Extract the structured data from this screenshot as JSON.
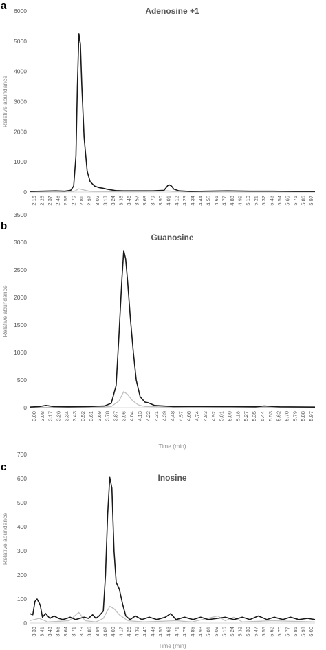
{
  "chart_data": [
    {
      "panel": "a",
      "type": "line",
      "title": "Adenosine +1",
      "ylabel": "Relative abundance",
      "xlabel": "",
      "ylim": [
        0,
        6000
      ],
      "yticks": [
        0,
        1000,
        2000,
        3000,
        4000,
        5000,
        6000
      ],
      "xticks": [
        "2.15",
        "2.26",
        "2.37",
        "2.48",
        "2.59",
        "2.70",
        "2.81",
        "2.92",
        "3.02",
        "3.13",
        "3.24",
        "3.35",
        "3.46",
        "3.57",
        "3.68",
        "3.79",
        "3.90",
        "4.01",
        "4.12",
        "4.23",
        "4.34",
        "4.44",
        "4.55",
        "4.66",
        "4.77",
        "4.88",
        "4.99",
        "5.10",
        "5.21",
        "5.32",
        "5.43",
        "5.54",
        "5.65",
        "5.76",
        "5.86",
        "5.97"
      ],
      "xlim": [
        2.15,
        5.97
      ],
      "grid": false,
      "series": [
        {
          "color": "#1a1a1a",
          "points": [
            [
              2.15,
              20
            ],
            [
              2.3,
              30
            ],
            [
              2.5,
              40
            ],
            [
              2.62,
              30
            ],
            [
              2.7,
              60
            ],
            [
              2.74,
              200
            ],
            [
              2.77,
              1200
            ],
            [
              2.79,
              3500
            ],
            [
              2.81,
              5250
            ],
            [
              2.83,
              4900
            ],
            [
              2.85,
              3500
            ],
            [
              2.88,
              1800
            ],
            [
              2.92,
              700
            ],
            [
              2.96,
              350
            ],
            [
              3.02,
              200
            ],
            [
              3.08,
              150
            ],
            [
              3.13,
              130
            ],
            [
              3.2,
              90
            ],
            [
              3.3,
              50
            ],
            [
              3.4,
              40
            ],
            [
              3.6,
              40
            ],
            [
              3.8,
              40
            ],
            [
              3.95,
              60
            ],
            [
              4.0,
              220
            ],
            [
              4.02,
              240
            ],
            [
              4.05,
              200
            ],
            [
              4.08,
              100
            ],
            [
              4.15,
              40
            ],
            [
              4.3,
              20
            ],
            [
              4.5,
              30
            ],
            [
              4.8,
              40
            ],
            [
              5.1,
              30
            ],
            [
              5.4,
              30
            ],
            [
              5.7,
              20
            ],
            [
              5.97,
              20
            ]
          ]
        },
        {
          "color": "#bfbfbf",
          "points": [
            [
              2.15,
              5
            ],
            [
              2.6,
              5
            ],
            [
              2.75,
              30
            ],
            [
              2.81,
              110
            ],
            [
              2.86,
              80
            ],
            [
              2.95,
              30
            ],
            [
              3.1,
              20
            ],
            [
              3.5,
              10
            ],
            [
              3.7,
              15
            ],
            [
              4.0,
              40
            ],
            [
              4.05,
              30
            ],
            [
              4.2,
              10
            ],
            [
              4.6,
              5
            ],
            [
              5.97,
              5
            ]
          ]
        }
      ]
    },
    {
      "panel": "b",
      "type": "line",
      "title": "Guanosine",
      "ylabel": "Relative abundance",
      "xlabel": "Time (min)",
      "ylim": [
        0,
        3500
      ],
      "yticks": [
        0,
        500,
        1000,
        1500,
        2000,
        2500,
        3000,
        3500
      ],
      "xticks": [
        "3.00",
        "3.08",
        "3.17",
        "3.26",
        "3.34",
        "3.43",
        "3.52",
        "3.61",
        "3.69",
        "3.78",
        "3.87",
        "3.96",
        "4.04",
        "4.13",
        "4.22",
        "4.31",
        "4.39",
        "4.48",
        "4.57",
        "4.66",
        "4.74",
        "4.83",
        "4.92",
        "5.01",
        "5.09",
        "5.18",
        "5.27",
        "5.35",
        "5.44",
        "5.53",
        "5.62",
        "5.70",
        "5.79",
        "5.88",
        "5.97"
      ],
      "xlim": [
        3.0,
        5.97
      ],
      "grid": false,
      "series": [
        {
          "color": "#1a1a1a",
          "points": [
            [
              3.0,
              10
            ],
            [
              3.1,
              20
            ],
            [
              3.17,
              40
            ],
            [
              3.25,
              20
            ],
            [
              3.4,
              15
            ],
            [
              3.6,
              20
            ],
            [
              3.78,
              30
            ],
            [
              3.85,
              80
            ],
            [
              3.9,
              400
            ],
            [
              3.93,
              1300
            ],
            [
              3.96,
              2300
            ],
            [
              3.98,
              2850
            ],
            [
              4.0,
              2700
            ],
            [
              4.02,
              2300
            ],
            [
              4.05,
              1600
            ],
            [
              4.08,
              1000
            ],
            [
              4.11,
              500
            ],
            [
              4.15,
              200
            ],
            [
              4.2,
              100
            ],
            [
              4.23,
              90
            ],
            [
              4.3,
              40
            ],
            [
              4.5,
              20
            ],
            [
              4.8,
              20
            ],
            [
              5.1,
              20
            ],
            [
              5.35,
              15
            ],
            [
              5.44,
              30
            ],
            [
              5.6,
              15
            ],
            [
              5.97,
              10
            ]
          ]
        },
        {
          "color": "#bfbfbf",
          "points": [
            [
              3.0,
              5
            ],
            [
              3.7,
              5
            ],
            [
              3.85,
              20
            ],
            [
              3.93,
              120
            ],
            [
              3.98,
              290
            ],
            [
              4.02,
              240
            ],
            [
              4.07,
              130
            ],
            [
              4.13,
              50
            ],
            [
              4.2,
              20
            ],
            [
              4.5,
              10
            ],
            [
              4.7,
              25
            ],
            [
              5.0,
              10
            ],
            [
              5.97,
              5
            ]
          ]
        }
      ]
    },
    {
      "panel": "c",
      "type": "line",
      "title": "Inosine",
      "ylabel": "Relative abundance",
      "xlabel": "Time (min)",
      "ylim": [
        0,
        700
      ],
      "yticks": [
        0,
        100,
        200,
        300,
        400,
        500,
        600,
        700
      ],
      "xticks": [
        "3.33",
        "3.41",
        "3.48",
        "3.56",
        "3.64",
        "3.71",
        "3.79",
        "3.86",
        "3.94",
        "4.02",
        "4.09",
        "4.17",
        "4.25",
        "4.32",
        "4.40",
        "4.48",
        "4.55",
        "4.63",
        "4.71",
        "4.78",
        "4.86",
        "4.93",
        "5.01",
        "5.09",
        "5.16",
        "5.24",
        "5.32",
        "5.39",
        "5.47",
        "5.55",
        "5.62",
        "5.70",
        "5.77",
        "5.85",
        "5.93",
        "6.00"
      ],
      "xlim": [
        3.33,
        6.0
      ],
      "grid": false,
      "series": [
        {
          "color": "#1a1a1a",
          "points": [
            [
              3.33,
              40
            ],
            [
              3.36,
              35
            ],
            [
              3.38,
              90
            ],
            [
              3.4,
              100
            ],
            [
              3.43,
              75
            ],
            [
              3.45,
              25
            ],
            [
              3.48,
              40
            ],
            [
              3.52,
              20
            ],
            [
              3.56,
              30
            ],
            [
              3.6,
              20
            ],
            [
              3.64,
              15
            ],
            [
              3.68,
              20
            ],
            [
              3.71,
              25
            ],
            [
              3.76,
              15
            ],
            [
              3.8,
              20
            ],
            [
              3.84,
              25
            ],
            [
              3.88,
              20
            ],
            [
              3.92,
              35
            ],
            [
              3.95,
              20
            ],
            [
              3.98,
              30
            ],
            [
              4.02,
              50
            ],
            [
              4.04,
              200
            ],
            [
              4.06,
              450
            ],
            [
              4.08,
              605
            ],
            [
              4.1,
              560
            ],
            [
              4.12,
              300
            ],
            [
              4.14,
              170
            ],
            [
              4.17,
              140
            ],
            [
              4.2,
              80
            ],
            [
              4.23,
              30
            ],
            [
              4.27,
              15
            ],
            [
              4.32,
              30
            ],
            [
              4.38,
              15
            ],
            [
              4.45,
              25
            ],
            [
              4.52,
              15
            ],
            [
              4.6,
              25
            ],
            [
              4.65,
              40
            ],
            [
              4.7,
              15
            ],
            [
              4.78,
              25
            ],
            [
              4.86,
              15
            ],
            [
              4.93,
              25
            ],
            [
              5.0,
              15
            ],
            [
              5.09,
              20
            ],
            [
              5.16,
              25
            ],
            [
              5.24,
              15
            ],
            [
              5.32,
              25
            ],
            [
              5.39,
              15
            ],
            [
              5.47,
              30
            ],
            [
              5.55,
              15
            ],
            [
              5.62,
              25
            ],
            [
              5.7,
              15
            ],
            [
              5.77,
              25
            ],
            [
              5.85,
              15
            ],
            [
              5.93,
              20
            ],
            [
              6.0,
              15
            ]
          ]
        },
        {
          "color": "#bfbfbf",
          "points": [
            [
              3.33,
              10
            ],
            [
              3.42,
              20
            ],
            [
              3.5,
              5
            ],
            [
              3.7,
              10
            ],
            [
              3.79,
              45
            ],
            [
              3.85,
              10
            ],
            [
              3.95,
              5
            ],
            [
              4.02,
              20
            ],
            [
              4.08,
              70
            ],
            [
              4.12,
              60
            ],
            [
              4.17,
              35
            ],
            [
              4.25,
              10
            ],
            [
              4.4,
              5
            ],
            [
              4.7,
              10
            ],
            [
              4.85,
              5
            ],
            [
              5.09,
              30
            ],
            [
              5.16,
              10
            ],
            [
              5.24,
              25
            ],
            [
              5.32,
              5
            ],
            [
              5.6,
              10
            ],
            [
              6.0,
              5
            ]
          ]
        }
      ]
    }
  ]
}
